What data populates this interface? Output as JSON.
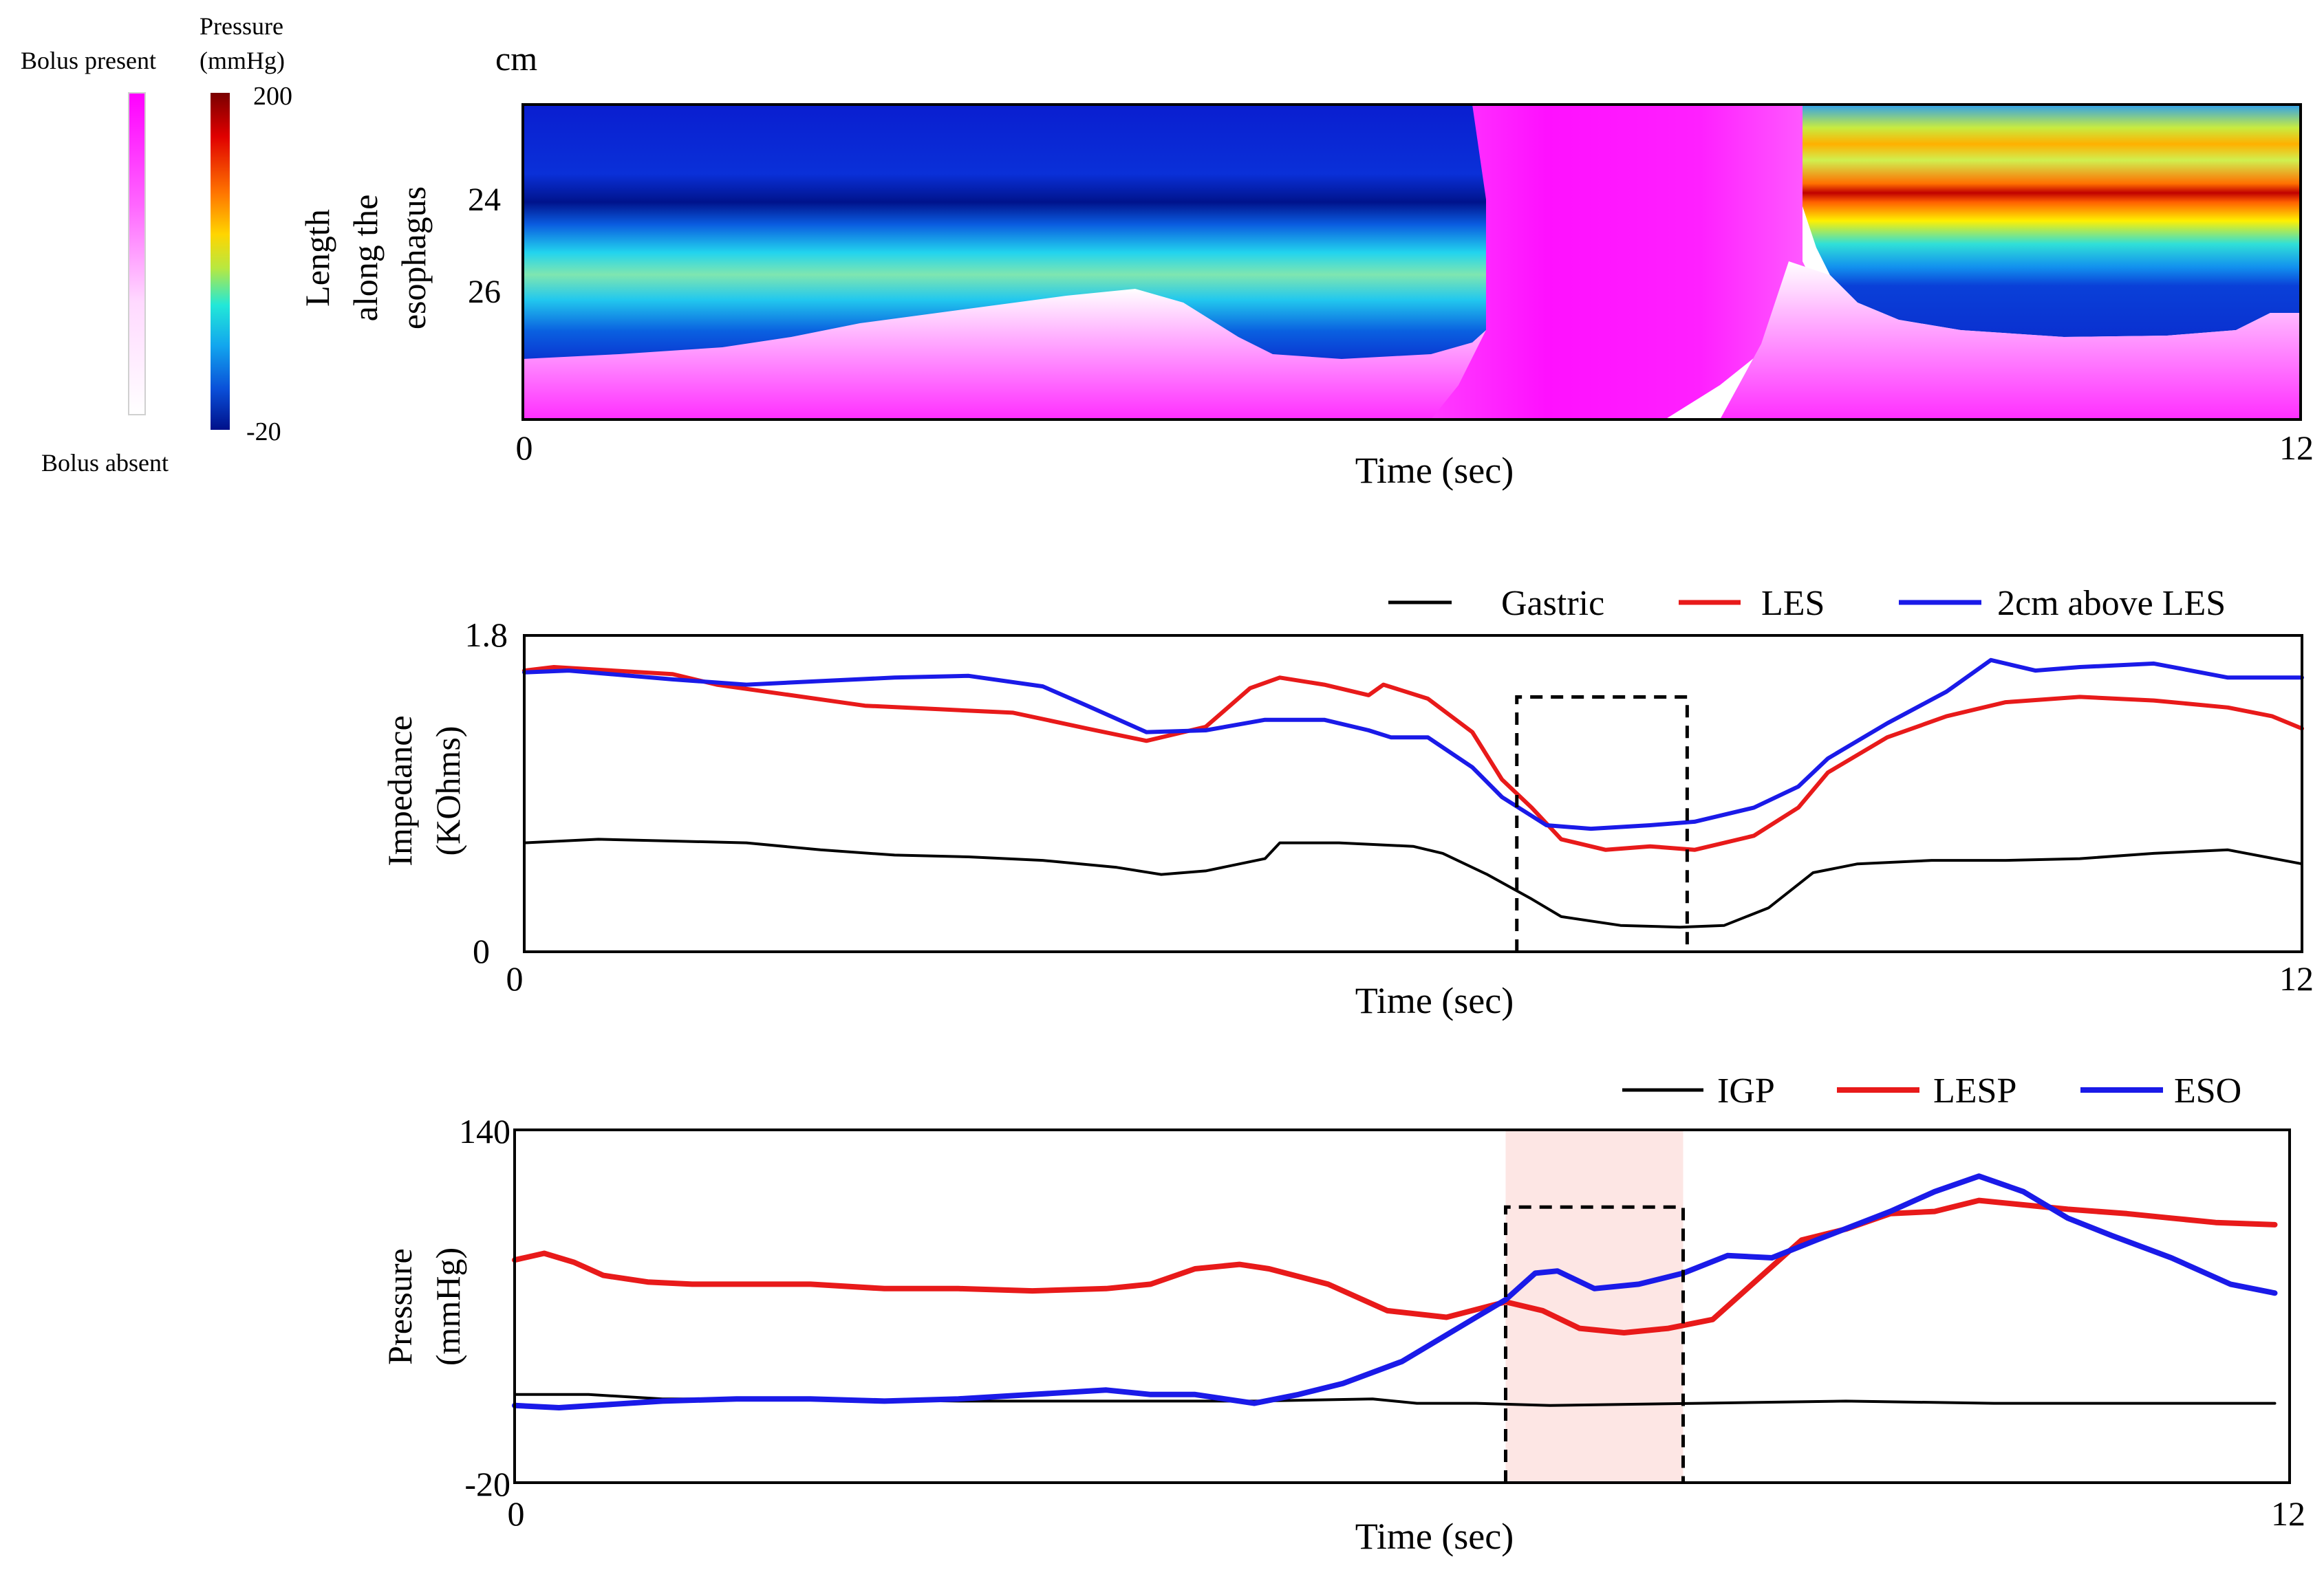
{
  "figure": {
    "colorbar_bolus": {
      "top_label": "Bolus present",
      "bottom_label": "Bolus absent",
      "colors": [
        "#ff00ff",
        "#ff66ff",
        "#ffd9ff",
        "#ffffff"
      ]
    },
    "colorbar_pressure": {
      "title_line1": "Pressure",
      "title_line2": "(mmHg)",
      "max_label": "200",
      "min_label": "-20",
      "colors": [
        "#7a0000",
        "#e00000",
        "#ff7700",
        "#ffd500",
        "#b8e840",
        "#22e8d8",
        "#12a6ee",
        "#0a4fd8",
        "#00108a"
      ]
    }
  },
  "chart_data": [
    {
      "type": "heatmap",
      "title": "",
      "unit_label": "cm",
      "xlabel": "Time (sec)",
      "ylabel_line1": "Length",
      "ylabel_line2": "along the",
      "ylabel_line3": "esophagus",
      "xlim": [
        0,
        12
      ],
      "x_ticks": [
        "0",
        "12"
      ],
      "y_ticks": [
        "24",
        "26"
      ],
      "regions": [
        {
          "t0": 0,
          "t1": 6.4,
          "state": "pressure: low band above, moderate band at 24-25 cm, bolus present below ~27 cm"
        },
        {
          "t0": 6.4,
          "t1": 8.6,
          "state": "bolus present over full length"
        },
        {
          "t0": 8.6,
          "t1": 12,
          "state": "high pressure peak (~200 mmHg) at ~24 cm"
        }
      ]
    },
    {
      "type": "line",
      "xlabel": "Time (sec)",
      "ylabel_line1": "Impedance",
      "ylabel_line2": "(KOhms)",
      "xlim": [
        0,
        12
      ],
      "ylim": [
        0,
        1.8
      ],
      "x_ticks": [
        "0",
        "12"
      ],
      "y_ticks": [
        "0",
        "1.8"
      ],
      "box": {
        "t0": 6.7,
        "t1": 7.85,
        "v_top": 1.45
      },
      "series": [
        {
          "name": "Gastric",
          "color": "#000000",
          "width": 2,
          "points": [
            [
              0,
              0.62
            ],
            [
              0.5,
              0.64
            ],
            [
              1,
              0.63
            ],
            [
              1.5,
              0.62
            ],
            [
              2,
              0.58
            ],
            [
              2.5,
              0.55
            ],
            [
              3,
              0.54
            ],
            [
              3.5,
              0.52
            ],
            [
              4,
              0.48
            ],
            [
              4.3,
              0.44
            ],
            [
              4.6,
              0.46
            ],
            [
              5,
              0.53
            ],
            [
              5.1,
              0.62
            ],
            [
              5.5,
              0.62
            ],
            [
              6,
              0.6
            ],
            [
              6.2,
              0.56
            ],
            [
              6.5,
              0.44
            ],
            [
              6.8,
              0.3
            ],
            [
              7,
              0.2
            ],
            [
              7.4,
              0.15
            ],
            [
              7.8,
              0.14
            ],
            [
              8.1,
              0.15
            ],
            [
              8.4,
              0.25
            ],
            [
              8.7,
              0.45
            ],
            [
              9,
              0.5
            ],
            [
              9.5,
              0.52
            ],
            [
              10,
              0.52
            ],
            [
              10.5,
              0.53
            ],
            [
              11,
              0.56
            ],
            [
              11.5,
              0.58
            ],
            [
              12,
              0.5
            ]
          ]
        },
        {
          "name": "LES",
          "color": "#e81a1a",
          "width": 3,
          "points": [
            [
              0,
              1.6
            ],
            [
              0.2,
              1.62
            ],
            [
              1,
              1.58
            ],
            [
              1.3,
              1.52
            ],
            [
              1.8,
              1.46
            ],
            [
              2.3,
              1.4
            ],
            [
              2.8,
              1.38
            ],
            [
              3.3,
              1.36
            ],
            [
              3.8,
              1.27
            ],
            [
              4.2,
              1.2
            ],
            [
              4.6,
              1.28
            ],
            [
              4.9,
              1.5
            ],
            [
              5.1,
              1.56
            ],
            [
              5.4,
              1.52
            ],
            [
              5.7,
              1.46
            ],
            [
              5.8,
              1.52
            ],
            [
              6.1,
              1.44
            ],
            [
              6.4,
              1.25
            ],
            [
              6.6,
              0.98
            ],
            [
              6.8,
              0.82
            ],
            [
              7,
              0.64
            ],
            [
              7.3,
              0.58
            ],
            [
              7.6,
              0.6
            ],
            [
              7.9,
              0.58
            ],
            [
              8.3,
              0.66
            ],
            [
              8.6,
              0.82
            ],
            [
              8.8,
              1.02
            ],
            [
              9.2,
              1.22
            ],
            [
              9.6,
              1.34
            ],
            [
              10,
              1.42
            ],
            [
              10.5,
              1.45
            ],
            [
              11,
              1.43
            ],
            [
              11.5,
              1.39
            ],
            [
              11.8,
              1.34
            ],
            [
              12,
              1.27
            ]
          ]
        },
        {
          "name": "2cm above LES",
          "color": "#1a1ae8",
          "width": 3,
          "points": [
            [
              0,
              1.59
            ],
            [
              0.3,
              1.6
            ],
            [
              1,
              1.55
            ],
            [
              1.5,
              1.52
            ],
            [
              2,
              1.54
            ],
            [
              2.5,
              1.56
            ],
            [
              3,
              1.57
            ],
            [
              3.5,
              1.51
            ],
            [
              3.8,
              1.4
            ],
            [
              4.2,
              1.25
            ],
            [
              4.6,
              1.26
            ],
            [
              5,
              1.32
            ],
            [
              5.4,
              1.32
            ],
            [
              5.7,
              1.26
            ],
            [
              5.85,
              1.22
            ],
            [
              6.1,
              1.22
            ],
            [
              6.4,
              1.05
            ],
            [
              6.6,
              0.88
            ],
            [
              6.9,
              0.72
            ],
            [
              7.2,
              0.7
            ],
            [
              7.6,
              0.72
            ],
            [
              7.9,
              0.74
            ],
            [
              8.3,
              0.82
            ],
            [
              8.6,
              0.94
            ],
            [
              8.8,
              1.1
            ],
            [
              9.2,
              1.3
            ],
            [
              9.6,
              1.48
            ],
            [
              9.9,
              1.66
            ],
            [
              10.2,
              1.6
            ],
            [
              10.5,
              1.62
            ],
            [
              11,
              1.64
            ],
            [
              11.5,
              1.56
            ],
            [
              12,
              1.56
            ]
          ]
        }
      ]
    },
    {
      "type": "line",
      "xlabel": "Time (sec)",
      "ylabel_line1": "Pressure",
      "ylabel_line2": "(mmHg)",
      "xlim": [
        0,
        12
      ],
      "ylim": [
        -20,
        140
      ],
      "x_ticks": [
        "0",
        "12"
      ],
      "y_ticks": [
        "-20",
        "140"
      ],
      "shaded": {
        "t0": 6.7,
        "t1": 7.9,
        "color": "#fde6e4"
      },
      "box": {
        "t0": 6.7,
        "t1": 7.9,
        "v_top": 105
      },
      "series": [
        {
          "name": "IGP",
          "color": "#000000",
          "width": 2,
          "points": [
            [
              0,
              20
            ],
            [
              0.5,
              20
            ],
            [
              1,
              18
            ],
            [
              2,
              18
            ],
            [
              3,
              17
            ],
            [
              4,
              17
            ],
            [
              5,
              17
            ],
            [
              5.8,
              18
            ],
            [
              6.1,
              16
            ],
            [
              6.5,
              16
            ],
            [
              7,
              15
            ],
            [
              8,
              16
            ],
            [
              9,
              17
            ],
            [
              10,
              16
            ],
            [
              11,
              16
            ],
            [
              11.9,
              16
            ]
          ]
        },
        {
          "name": "LESP",
          "color": "#e81a1a",
          "width": 4,
          "points": [
            [
              0,
              81
            ],
            [
              0.2,
              84
            ],
            [
              0.4,
              80
            ],
            [
              0.6,
              74
            ],
            [
              0.9,
              71
            ],
            [
              1.2,
              70
            ],
            [
              2,
              70
            ],
            [
              2.5,
              68
            ],
            [
              3,
              68
            ],
            [
              3.5,
              67
            ],
            [
              4,
              68
            ],
            [
              4.3,
              70
            ],
            [
              4.6,
              77
            ],
            [
              4.9,
              79
            ],
            [
              5.1,
              77
            ],
            [
              5.5,
              70
            ],
            [
              5.9,
              58
            ],
            [
              6.3,
              55
            ],
            [
              6.7,
              62
            ],
            [
              6.95,
              58
            ],
            [
              7.2,
              50
            ],
            [
              7.5,
              48
            ],
            [
              7.8,
              50
            ],
            [
              8.1,
              54
            ],
            [
              8.4,
              72
            ],
            [
              8.7,
              90
            ],
            [
              9,
              95
            ],
            [
              9.3,
              102
            ],
            [
              9.6,
              103
            ],
            [
              9.9,
              108
            ],
            [
              10.2,
              106
            ],
            [
              10.5,
              104
            ],
            [
              10.9,
              102
            ],
            [
              11.2,
              100
            ],
            [
              11.5,
              98
            ],
            [
              11.9,
              97
            ]
          ]
        },
        {
          "name": "ESO",
          "color": "#1a1ae8",
          "width": 4,
          "points": [
            [
              0,
              15
            ],
            [
              0.3,
              14
            ],
            [
              1,
              17
            ],
            [
              1.5,
              18
            ],
            [
              2,
              18
            ],
            [
              2.5,
              17
            ],
            [
              3,
              18
            ],
            [
              3.5,
              20
            ],
            [
              4,
              22
            ],
            [
              4.3,
              20
            ],
            [
              4.6,
              20
            ],
            [
              5,
              16
            ],
            [
              5.3,
              20
            ],
            [
              5.6,
              25
            ],
            [
              6,
              35
            ],
            [
              6.5,
              55
            ],
            [
              6.7,
              63
            ],
            [
              6.9,
              75
            ],
            [
              7.05,
              76
            ],
            [
              7.3,
              68
            ],
            [
              7.6,
              70
            ],
            [
              7.9,
              75
            ],
            [
              8.2,
              83
            ],
            [
              8.5,
              82
            ],
            [
              8.8,
              90
            ],
            [
              9.3,
              103
            ],
            [
              9.6,
              112
            ],
            [
              9.9,
              119
            ],
            [
              10.2,
              112
            ],
            [
              10.5,
              100
            ],
            [
              10.8,
              92
            ],
            [
              11.2,
              82
            ],
            [
              11.6,
              70
            ],
            [
              11.9,
              66
            ]
          ]
        }
      ]
    }
  ]
}
